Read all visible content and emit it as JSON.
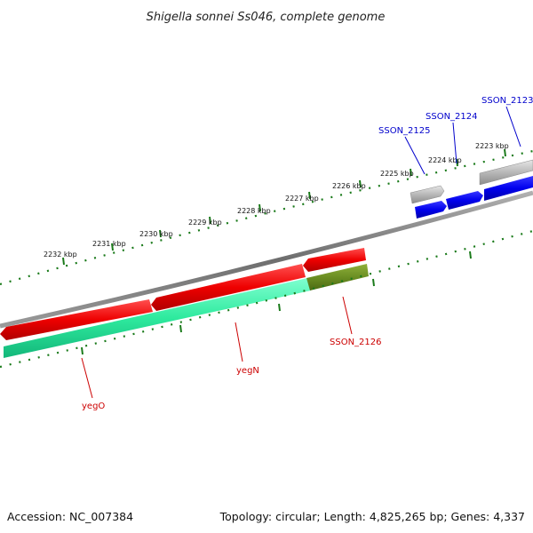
{
  "title": "Shigella sonnei Ss046, complete genome",
  "footer": {
    "accession": "Accession: NC_007384",
    "summary": "Topology: circular; Length: 4,825,265 bp; Genes: 4,337"
  },
  "scale_labels": [
    "2223 kbp",
    "2224 kbp",
    "2225 kbp",
    "2226 kbp",
    "2227 kbp",
    "2228 kbp",
    "2229 kbp",
    "2230 kbp",
    "2231 kbp",
    "2232 kbp"
  ],
  "genes": [
    {
      "name": "SSON_2123",
      "color": "#0000cc"
    },
    {
      "name": "SSON_2124",
      "color": "#0000cc"
    },
    {
      "name": "SSON_2125",
      "color": "#0000cc"
    },
    {
      "name": "SSON_2126",
      "color": "#cc0000"
    },
    {
      "name": "yegN",
      "color": "#cc0000"
    },
    {
      "name": "yegO",
      "color": "#cc0000"
    }
  ],
  "colors": {
    "backbone": "#808080",
    "tick": "#1a7a1a",
    "forward_gene": "#0000ee",
    "forward_pseudo": "#b0b0b0",
    "reverse_gene": "#ee0000",
    "reverse_feature_green": "#33eeaa",
    "reverse_feature_olive": "#6b8e23"
  }
}
